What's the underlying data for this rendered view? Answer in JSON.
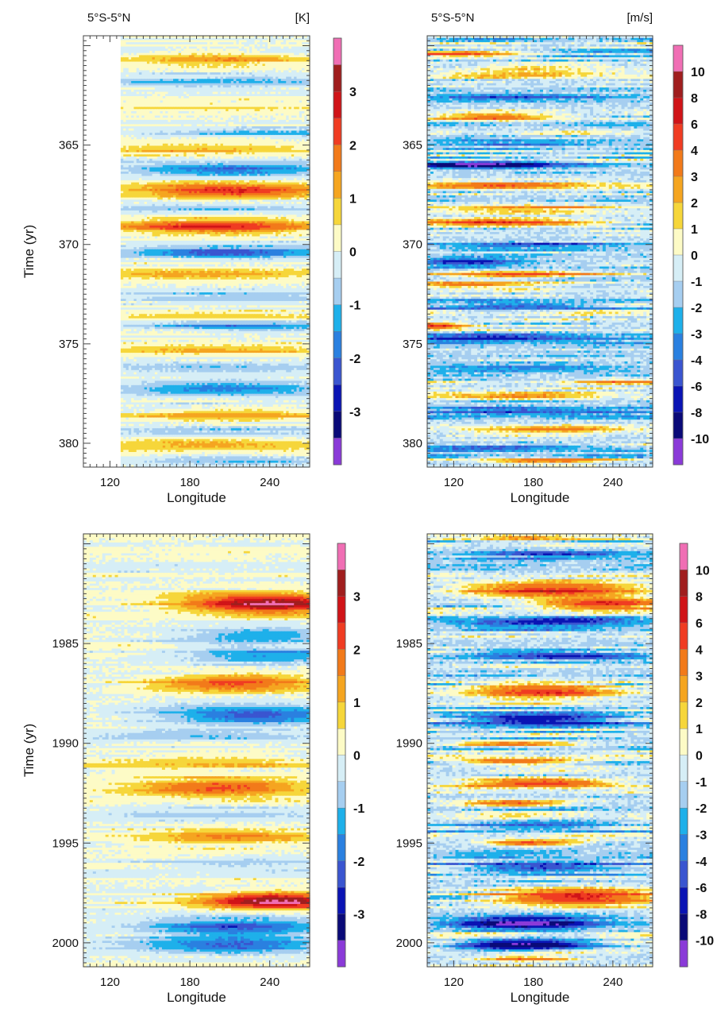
{
  "chart_data": [
    {
      "id": "sst_model",
      "type": "heatmap",
      "region_label": "5°S-5°N",
      "unit_label": "[K]",
      "xlabel": "Longitude",
      "ylabel": "Time (yr)",
      "xlim": [
        100,
        270
      ],
      "ylim": [
        381.2,
        359.5
      ],
      "data_lon_min": 128,
      "xticks": [
        "120",
        "180",
        "240"
      ],
      "yticks": [
        "365",
        "370",
        "375",
        "380"
      ],
      "grid": false,
      "colorbar_levels": [
        "3",
        "2",
        "1",
        "0",
        "-1",
        "-2",
        "-3"
      ],
      "colorbar_colors": [
        "#f06eb4",
        "#a01e1e",
        "#d01418",
        "#f03c22",
        "#f27a1a",
        "#f5a520",
        "#f6d63a",
        "#fdfbc6",
        "#d6eef6",
        "#a6cef0",
        "#1eb0ea",
        "#2a80e0",
        "#3a55d0",
        "#0a14b4",
        "#0a0a78",
        "#8a3ad8"
      ],
      "events": [
        {
          "t": 360.7,
          "amp": 1.4,
          "w": 0.3,
          "lon_c": 200,
          "lon_w": 60
        },
        {
          "t": 361.8,
          "amp": -1.0,
          "w": 0.35,
          "lon_c": 210,
          "lon_w": 90
        },
        {
          "t": 363.1,
          "amp": 0.7,
          "w": 0.25,
          "lon_c": 200,
          "lon_w": 80
        },
        {
          "t": 364.4,
          "amp": -1.0,
          "w": 0.25,
          "lon_c": 240,
          "lon_w": 80
        },
        {
          "t": 365.2,
          "amp": 1.2,
          "w": 0.25,
          "lon_c": 190,
          "lon_w": 80
        },
        {
          "t": 366.2,
          "amp": -1.9,
          "w": 0.3,
          "lon_c": 210,
          "lon_w": 70
        },
        {
          "t": 367.3,
          "amp": 2.6,
          "w": 0.35,
          "lon_c": 210,
          "lon_w": 70
        },
        {
          "t": 368.2,
          "amp": -0.9,
          "w": 0.25,
          "lon_c": 190,
          "lon_w": 90
        },
        {
          "t": 369.1,
          "amp": 2.5,
          "w": 0.35,
          "lon_c": 200,
          "lon_w": 70
        },
        {
          "t": 370.4,
          "amp": -2.0,
          "w": 0.3,
          "lon_c": 210,
          "lon_w": 70
        },
        {
          "t": 371.5,
          "amp": 1.3,
          "w": 0.25,
          "lon_c": 190,
          "lon_w": 90
        },
        {
          "t": 372.6,
          "amp": -0.9,
          "w": 0.35,
          "lon_c": 210,
          "lon_w": 80
        },
        {
          "t": 373.6,
          "amp": 0.9,
          "w": 0.25,
          "lon_c": 200,
          "lon_w": 80
        },
        {
          "t": 374.1,
          "amp": -1.6,
          "w": 0.25,
          "lon_c": 220,
          "lon_w": 70
        },
        {
          "t": 375.3,
          "amp": 1.2,
          "w": 0.25,
          "lon_c": 200,
          "lon_w": 90
        },
        {
          "t": 376.2,
          "amp": -0.9,
          "w": 0.3,
          "lon_c": 200,
          "lon_w": 90
        },
        {
          "t": 377.3,
          "amp": -1.9,
          "w": 0.4,
          "lon_c": 210,
          "lon_w": 70
        },
        {
          "t": 378.6,
          "amp": 1.3,
          "w": 0.3,
          "lon_c": 210,
          "lon_w": 70
        },
        {
          "t": 379.4,
          "amp": -0.8,
          "w": 0.3,
          "lon_c": 200,
          "lon_w": 90
        },
        {
          "t": 380.1,
          "amp": 1.2,
          "w": 0.25,
          "lon_c": 200,
          "lon_w": 80
        },
        {
          "t": 380.9,
          "amp": -1.0,
          "w": 0.25,
          "lon_c": 220,
          "lon_w": 70
        }
      ]
    },
    {
      "id": "wind_model",
      "type": "heatmap",
      "region_label": "5°S-5°N",
      "unit_label": "[m/s]",
      "xlabel": "Longitude",
      "ylabel": "",
      "xlim": [
        100,
        270
      ],
      "ylim": [
        381.2,
        359.5
      ],
      "data_lon_min": 100,
      "xticks": [
        "120",
        "180",
        "240"
      ],
      "yticks": [
        "365",
        "370",
        "375",
        "380"
      ],
      "grid": false,
      "colorbar_levels": [
        "10",
        "8",
        "6",
        "4",
        "3",
        "2",
        "1",
        "0",
        "-1",
        "-2",
        "-3",
        "-4",
        "-6",
        "-8",
        "-10"
      ],
      "colorbar_colors": [
        "#f06eb4",
        "#a01e1e",
        "#d01418",
        "#f03c22",
        "#f27a1a",
        "#f5a520",
        "#f6d63a",
        "#fdfbc6",
        "#d6eef6",
        "#a6cef0",
        "#1eb0ea",
        "#2a80e0",
        "#3a55d0",
        "#0a14b4",
        "#0a0a78",
        "#8a3ad8"
      ],
      "events": [
        {
          "t": 360.4,
          "amp": 7.0,
          "w": 0.15,
          "lon_c": 120,
          "lon_w": 40
        },
        {
          "t": 361.4,
          "amp": 3.0,
          "w": 0.2,
          "lon_c": 180,
          "lon_w": 60
        },
        {
          "t": 362.6,
          "amp": -3.5,
          "w": 0.2,
          "lon_c": 170,
          "lon_w": 70
        },
        {
          "t": 363.6,
          "amp": 6.0,
          "w": 0.15,
          "lon_c": 150,
          "lon_w": 40
        },
        {
          "t": 364.8,
          "amp": -3.0,
          "w": 0.2,
          "lon_c": 170,
          "lon_w": 70
        },
        {
          "t": 366.0,
          "amp": -9.0,
          "w": 0.15,
          "lon_c": 140,
          "lon_w": 50
        },
        {
          "t": 367.0,
          "amp": 4.0,
          "w": 0.25,
          "lon_c": 160,
          "lon_w": 70
        },
        {
          "t": 368.2,
          "amp": 3.5,
          "w": 0.2,
          "lon_c": 170,
          "lon_w": 60
        },
        {
          "t": 368.9,
          "amp": 8.5,
          "w": 0.15,
          "lon_c": 150,
          "lon_w": 60
        },
        {
          "t": 370.1,
          "amp": -4.0,
          "w": 0.2,
          "lon_c": 180,
          "lon_w": 60
        },
        {
          "t": 370.9,
          "amp": -5.0,
          "w": 0.2,
          "lon_c": 130,
          "lon_w": 40
        },
        {
          "t": 371.5,
          "amp": 6.0,
          "w": 0.15,
          "lon_c": 170,
          "lon_w": 50
        },
        {
          "t": 372.0,
          "amp": 5.0,
          "w": 0.15,
          "lon_c": 130,
          "lon_w": 40
        },
        {
          "t": 373.1,
          "amp": -3.5,
          "w": 0.2,
          "lon_c": 160,
          "lon_w": 70
        },
        {
          "t": 374.1,
          "amp": 8.0,
          "w": 0.15,
          "lon_c": 105,
          "lon_w": 20
        },
        {
          "t": 374.7,
          "amp": -4.0,
          "w": 0.2,
          "lon_c": 150,
          "lon_w": 70
        },
        {
          "t": 376.2,
          "amp": -3.0,
          "w": 0.2,
          "lon_c": 170,
          "lon_w": 70
        },
        {
          "t": 376.9,
          "amp": 3.5,
          "w": 0.15,
          "lon_c": 250,
          "lon_w": 30
        },
        {
          "t": 377.6,
          "amp": 2.5,
          "w": 0.2,
          "lon_c": 150,
          "lon_w": 70
        },
        {
          "t": 378.4,
          "amp": -3.0,
          "w": 0.2,
          "lon_c": 180,
          "lon_w": 70
        },
        {
          "t": 379.3,
          "amp": 3.0,
          "w": 0.2,
          "lon_c": 190,
          "lon_w": 60
        },
        {
          "t": 380.2,
          "amp": -3.0,
          "w": 0.2,
          "lon_c": 150,
          "lon_w": 60
        },
        {
          "t": 380.9,
          "amp": 5.0,
          "w": 0.15,
          "lon_c": 190,
          "lon_w": 40
        }
      ]
    },
    {
      "id": "sst_obs",
      "type": "heatmap",
      "region_label": "",
      "unit_label": "",
      "xlabel": "Longitude",
      "ylabel": "Time (yr)",
      "xlim": [
        100,
        270
      ],
      "ylim": [
        2001.2,
        1979.5
      ],
      "data_lon_min": 100,
      "xticks": [
        "120",
        "180",
        "240"
      ],
      "yticks": [
        "1985",
        "1990",
        "1995",
        "2000"
      ],
      "grid": false,
      "colorbar_levels": [
        "3",
        "2",
        "1",
        "0",
        "-1",
        "-2",
        "-3"
      ],
      "colorbar_colors": [
        "#f06eb4",
        "#a01e1e",
        "#d01418",
        "#f03c22",
        "#f27a1a",
        "#f5a520",
        "#f6d63a",
        "#fdfbc6",
        "#d6eef6",
        "#a6cef0",
        "#1eb0ea",
        "#2a80e0",
        "#3a55d0",
        "#0a14b4",
        "#0a0a78",
        "#8a3ad8"
      ],
      "events": [
        {
          "t": 1983.0,
          "amp": 3.6,
          "w": 0.45,
          "lon_c": 240,
          "lon_w": 55
        },
        {
          "t": 1984.6,
          "amp": -1.5,
          "w": 0.4,
          "lon_c": 230,
          "lon_w": 60
        },
        {
          "t": 1985.6,
          "amp": -1.6,
          "w": 0.4,
          "lon_c": 240,
          "lon_w": 55
        },
        {
          "t": 1987.0,
          "amp": 2.2,
          "w": 0.45,
          "lon_c": 215,
          "lon_w": 60
        },
        {
          "t": 1988.6,
          "amp": -2.2,
          "w": 0.45,
          "lon_c": 230,
          "lon_w": 60
        },
        {
          "t": 1989.6,
          "amp": -1.0,
          "w": 0.3,
          "lon_c": 190,
          "lon_w": 80
        },
        {
          "t": 1991.0,
          "amp": 0.9,
          "w": 0.4,
          "lon_c": 190,
          "lon_w": 80
        },
        {
          "t": 1992.2,
          "amp": 2.2,
          "w": 0.45,
          "lon_c": 200,
          "lon_w": 60
        },
        {
          "t": 1993.5,
          "amp": -0.8,
          "w": 0.3,
          "lon_c": 200,
          "lon_w": 80
        },
        {
          "t": 1994.7,
          "amp": 1.6,
          "w": 0.35,
          "lon_c": 210,
          "lon_w": 60
        },
        {
          "t": 1996.0,
          "amp": -0.7,
          "w": 0.3,
          "lon_c": 230,
          "lon_w": 70
        },
        {
          "t": 1997.9,
          "amp": 3.7,
          "w": 0.4,
          "lon_c": 245,
          "lon_w": 50
        },
        {
          "t": 1999.2,
          "amp": -2.2,
          "w": 0.45,
          "lon_c": 215,
          "lon_w": 60
        },
        {
          "t": 2000.1,
          "amp": -2.0,
          "w": 0.4,
          "lon_c": 210,
          "lon_w": 60
        }
      ]
    },
    {
      "id": "wind_obs",
      "type": "heatmap",
      "region_label": "",
      "unit_label": "",
      "xlabel": "Longitude",
      "ylabel": "",
      "xlim": [
        100,
        270
      ],
      "ylim": [
        2001.2,
        1979.5
      ],
      "data_lon_min": 100,
      "xticks": [
        "120",
        "180",
        "240"
      ],
      "yticks": [
        "1985",
        "1990",
        "1995",
        "2000"
      ],
      "grid": false,
      "colorbar_levels": [
        "10",
        "8",
        "6",
        "4",
        "3",
        "2",
        "1",
        "0",
        "-1",
        "-2",
        "-3",
        "-4",
        "-6",
        "-8",
        "-10"
      ],
      "colorbar_colors": [
        "#f06eb4",
        "#a01e1e",
        "#d01418",
        "#f03c22",
        "#f27a1a",
        "#f5a520",
        "#f6d63a",
        "#fdfbc6",
        "#d6eef6",
        "#a6cef0",
        "#1eb0ea",
        "#2a80e0",
        "#3a55d0",
        "#0a14b4",
        "#0a0a78",
        "#8a3ad8"
      ],
      "events": [
        {
          "t": 1979.7,
          "amp": 4.0,
          "w": 0.15,
          "lon_c": 175,
          "lon_w": 30
        },
        {
          "t": 1980.5,
          "amp": -3.0,
          "w": 0.25,
          "lon_c": 200,
          "lon_w": 60
        },
        {
          "t": 1982.3,
          "amp": 8.5,
          "w": 0.35,
          "lon_c": 195,
          "lon_w": 55
        },
        {
          "t": 1983.0,
          "amp": 8.0,
          "w": 0.25,
          "lon_c": 235,
          "lon_w": 40
        },
        {
          "t": 1984.0,
          "amp": -5.0,
          "w": 0.25,
          "lon_c": 190,
          "lon_w": 60
        },
        {
          "t": 1985.6,
          "amp": -4.0,
          "w": 0.3,
          "lon_c": 200,
          "lon_w": 60
        },
        {
          "t": 1987.4,
          "amp": 6.5,
          "w": 0.4,
          "lon_c": 185,
          "lon_w": 45
        },
        {
          "t": 1988.8,
          "amp": -5.5,
          "w": 0.35,
          "lon_c": 185,
          "lon_w": 55
        },
        {
          "t": 1990.0,
          "amp": 5.0,
          "w": 0.15,
          "lon_c": 165,
          "lon_w": 40
        },
        {
          "t": 1990.9,
          "amp": 6.0,
          "w": 0.15,
          "lon_c": 170,
          "lon_w": 40
        },
        {
          "t": 1992.0,
          "amp": 8.0,
          "w": 0.2,
          "lon_c": 185,
          "lon_w": 45
        },
        {
          "t": 1993.0,
          "amp": 6.0,
          "w": 0.15,
          "lon_c": 165,
          "lon_w": 35
        },
        {
          "t": 1994.1,
          "amp": -3.0,
          "w": 0.25,
          "lon_c": 180,
          "lon_w": 60
        },
        {
          "t": 1995.0,
          "amp": 7.0,
          "w": 0.15,
          "lon_c": 180,
          "lon_w": 30
        },
        {
          "t": 1996.2,
          "amp": -4.0,
          "w": 0.3,
          "lon_c": 190,
          "lon_w": 60
        },
        {
          "t": 1997.7,
          "amp": 8.5,
          "w": 0.4,
          "lon_c": 215,
          "lon_w": 55
        },
        {
          "t": 1999.0,
          "amp": -8.0,
          "w": 0.3,
          "lon_c": 175,
          "lon_w": 45
        },
        {
          "t": 2000.1,
          "amp": -8.5,
          "w": 0.25,
          "lon_c": 175,
          "lon_w": 45
        },
        {
          "t": 2000.8,
          "amp": 5.0,
          "w": 0.15,
          "lon_c": 175,
          "lon_w": 30
        }
      ]
    }
  ]
}
